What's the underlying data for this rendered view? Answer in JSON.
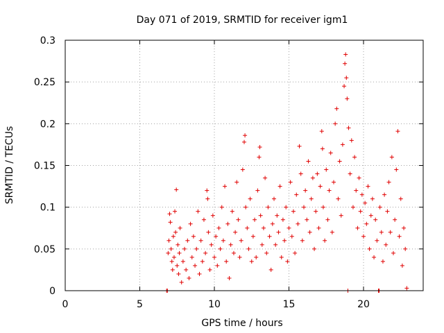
{
  "chart_data": {
    "type": "scatter",
    "title": "Day 071 of 2019, SRMTID for receiver igm1",
    "xlabel": "GPS time / hours",
    "ylabel": "SRMTID / TECUs",
    "xlim": [
      0,
      24
    ],
    "ylim": [
      0,
      0.3
    ],
    "xticks": [
      "0",
      "5",
      "10",
      "15",
      "20"
    ],
    "yticks": [
      "0",
      "0.05",
      "0.1",
      "0.15",
      "0.2",
      "0.25",
      "0.3"
    ],
    "grid": true,
    "marker": "+",
    "color": "#e00000",
    "series": [
      {
        "name": "igm1",
        "points": [
          [
            6.8,
            0.0
          ],
          [
            6.85,
            0.0
          ],
          [
            6.9,
            0.045
          ],
          [
            6.95,
            0.06
          ],
          [
            7.0,
            0.092
          ],
          [
            7.05,
            0.082
          ],
          [
            7.1,
            0.05
          ],
          [
            7.15,
            0.035
          ],
          [
            7.2,
            0.025
          ],
          [
            7.25,
            0.065
          ],
          [
            7.3,
            0.04
          ],
          [
            7.35,
            0.095
          ],
          [
            7.4,
            0.07
          ],
          [
            7.45,
            0.121
          ],
          [
            7.5,
            0.03
          ],
          [
            7.55,
            0.055
          ],
          [
            7.6,
            0.02
          ],
          [
            7.65,
            0.045
          ],
          [
            7.7,
            0.075
          ],
          [
            7.8,
            0.01
          ],
          [
            7.9,
            0.035
          ],
          [
            8.0,
            0.05
          ],
          [
            8.1,
            0.025
          ],
          [
            8.2,
            0.06
          ],
          [
            8.3,
            0.015
          ],
          [
            8.4,
            0.08
          ],
          [
            8.5,
            0.04
          ],
          [
            8.6,
            0.065
          ],
          [
            8.7,
            0.03
          ],
          [
            8.8,
            0.05
          ],
          [
            8.9,
            0.095
          ],
          [
            9.0,
            0.02
          ],
          [
            9.1,
            0.06
          ],
          [
            9.2,
            0.035
          ],
          [
            9.3,
            0.085
          ],
          [
            9.4,
            0.045
          ],
          [
            9.5,
            0.12
          ],
          [
            9.55,
            0.11
          ],
          [
            9.6,
            0.07
          ],
          [
            9.7,
            0.025
          ],
          [
            9.8,
            0.055
          ],
          [
            9.9,
            0.09
          ],
          [
            10.0,
            0.04
          ],
          [
            10.1,
            0.065
          ],
          [
            10.2,
            0.03
          ],
          [
            10.3,
            0.075
          ],
          [
            10.4,
            0.05
          ],
          [
            10.5,
            0.1
          ],
          [
            10.6,
            0.06
          ],
          [
            10.7,
            0.125
          ],
          [
            10.8,
            0.035
          ],
          [
            10.9,
            0.08
          ],
          [
            11.0,
            0.015
          ],
          [
            11.1,
            0.055
          ],
          [
            11.2,
            0.095
          ],
          [
            11.3,
            0.045
          ],
          [
            11.4,
            0.07
          ],
          [
            11.5,
            0.13
          ],
          [
            11.6,
            0.085
          ],
          [
            11.7,
            0.04
          ],
          [
            11.8,
            0.06
          ],
          [
            11.9,
            0.145
          ],
          [
            12.0,
            0.178
          ],
          [
            12.05,
            0.186
          ],
          [
            12.1,
            0.1
          ],
          [
            12.2,
            0.075
          ],
          [
            12.3,
            0.05
          ],
          [
            12.4,
            0.11
          ],
          [
            12.5,
            0.035
          ],
          [
            12.6,
            0.065
          ],
          [
            12.7,
            0.085
          ],
          [
            12.8,
            0.04
          ],
          [
            12.9,
            0.12
          ],
          [
            13.0,
            0.16
          ],
          [
            13.05,
            0.172
          ],
          [
            13.1,
            0.09
          ],
          [
            13.2,
            0.055
          ],
          [
            13.3,
            0.075
          ],
          [
            13.4,
            0.135
          ],
          [
            13.5,
            0.045
          ],
          [
            13.6,
            0.1
          ],
          [
            13.7,
            0.065
          ],
          [
            13.8,
            0.025
          ],
          [
            13.9,
            0.08
          ],
          [
            14.0,
            0.11
          ],
          [
            14.1,
            0.055
          ],
          [
            14.2,
            0.09
          ],
          [
            14.3,
            0.07
          ],
          [
            14.4,
            0.125
          ],
          [
            14.5,
            0.04
          ],
          [
            14.6,
            0.085
          ],
          [
            14.7,
            0.06
          ],
          [
            14.8,
            0.1
          ],
          [
            14.9,
            0.035
          ],
          [
            15.0,
            0.075
          ],
          [
            15.1,
            0.13
          ],
          [
            15.2,
            0.065
          ],
          [
            15.3,
            0.095
          ],
          [
            15.4,
            0.045
          ],
          [
            15.5,
            0.115
          ],
          [
            15.6,
            0.08
          ],
          [
            15.7,
            0.173
          ],
          [
            15.8,
            0.14
          ],
          [
            15.9,
            0.06
          ],
          [
            16.0,
            0.1
          ],
          [
            16.1,
            0.12
          ],
          [
            16.2,
            0.085
          ],
          [
            16.3,
            0.155
          ],
          [
            16.4,
            0.07
          ],
          [
            16.5,
            0.11
          ],
          [
            16.6,
            0.135
          ],
          [
            16.7,
            0.05
          ],
          [
            16.8,
            0.095
          ],
          [
            16.9,
            0.14
          ],
          [
            17.0,
            0.075
          ],
          [
            17.1,
            0.125
          ],
          [
            17.2,
            0.191
          ],
          [
            17.25,
            0.17
          ],
          [
            17.3,
            0.1
          ],
          [
            17.4,
            0.06
          ],
          [
            17.5,
            0.145
          ],
          [
            17.6,
            0.085
          ],
          [
            17.7,
            0.12
          ],
          [
            17.8,
            0.165
          ],
          [
            17.9,
            0.07
          ],
          [
            18.0,
            0.13
          ],
          [
            18.1,
            0.2
          ],
          [
            18.2,
            0.218
          ],
          [
            18.3,
            0.11
          ],
          [
            18.4,
            0.155
          ],
          [
            18.5,
            0.09
          ],
          [
            18.6,
            0.175
          ],
          [
            18.7,
            0.245
          ],
          [
            18.75,
            0.272
          ],
          [
            18.8,
            0.283
          ],
          [
            18.85,
            0.255
          ],
          [
            18.9,
            0.23
          ],
          [
            18.95,
            0.0
          ],
          [
            19.0,
            0.195
          ],
          [
            19.1,
            0.14
          ],
          [
            19.2,
            0.18
          ],
          [
            19.3,
            0.1
          ],
          [
            19.4,
            0.16
          ],
          [
            19.5,
            0.12
          ],
          [
            19.6,
            0.075
          ],
          [
            19.7,
            0.135
          ],
          [
            19.8,
            0.095
          ],
          [
            19.9,
            0.115
          ],
          [
            20.0,
            0.065
          ],
          [
            20.1,
            0.105
          ],
          [
            20.2,
            0.08
          ],
          [
            20.3,
            0.125
          ],
          [
            20.4,
            0.05
          ],
          [
            20.5,
            0.09
          ],
          [
            20.6,
            0.11
          ],
          [
            20.7,
            0.04
          ],
          [
            20.8,
            0.085
          ],
          [
            20.9,
            0.06
          ],
          [
            21.0,
            0.0
          ],
          [
            21.05,
            0.0
          ],
          [
            21.1,
            0.1
          ],
          [
            21.2,
            0.07
          ],
          [
            21.3,
            0.035
          ],
          [
            21.4,
            0.115
          ],
          [
            21.5,
            0.055
          ],
          [
            21.6,
            0.095
          ],
          [
            21.7,
            0.13
          ],
          [
            21.8,
            0.07
          ],
          [
            21.9,
            0.16
          ],
          [
            22.0,
            0.045
          ],
          [
            22.1,
            0.085
          ],
          [
            22.2,
            0.145
          ],
          [
            22.3,
            0.191
          ],
          [
            22.4,
            0.065
          ],
          [
            22.5,
            0.11
          ],
          [
            22.6,
            0.03
          ],
          [
            22.7,
            0.075
          ],
          [
            22.8,
            0.05
          ],
          [
            22.9,
            0.003
          ]
        ]
      }
    ]
  }
}
